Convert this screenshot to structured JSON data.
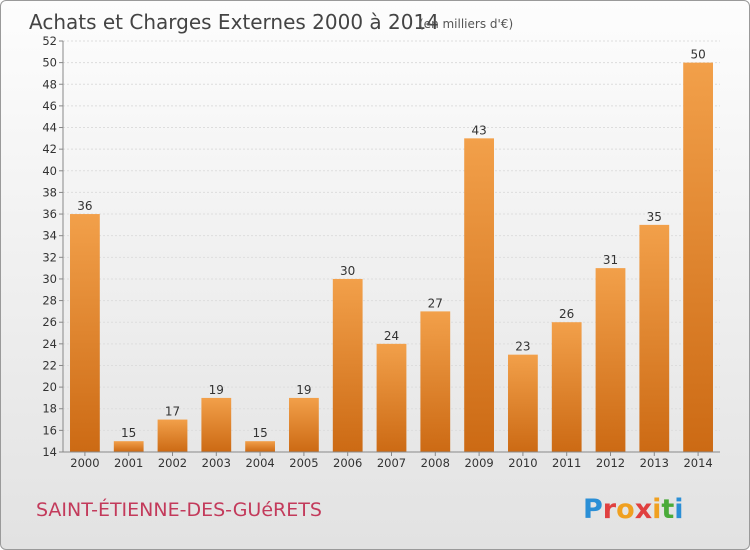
{
  "chart_data": {
    "type": "bar",
    "title": "Achats et Charges Externes 2000 à 2014",
    "subtitle": "(en milliers d'€)",
    "categories": [
      "2000",
      "2001",
      "2002",
      "2003",
      "2004",
      "2005",
      "2006",
      "2007",
      "2008",
      "2009",
      "2010",
      "2011",
      "2012",
      "2013",
      "2014"
    ],
    "values": [
      36,
      15,
      17,
      19,
      15,
      19,
      30,
      24,
      27,
      43,
      23,
      26,
      31,
      35,
      50
    ],
    "ylim": [
      14,
      52
    ],
    "ytick_step": 2,
    "grid": "horizontal",
    "bar_color": "#f2a04a",
    "bar_color_dark": "#cc6a14"
  },
  "footer": {
    "place_name": "SAINT-ÉTIENNE-DES-GUéRETS",
    "logo_letters": [
      "P",
      "r",
      "o",
      "x",
      "i",
      "t",
      "i"
    ],
    "logo_colors": [
      "#2b8fd6",
      "#e04040",
      "#f0a020",
      "#e04040",
      "#f0a020",
      "#4aab3a",
      "#2b8fd6"
    ]
  }
}
